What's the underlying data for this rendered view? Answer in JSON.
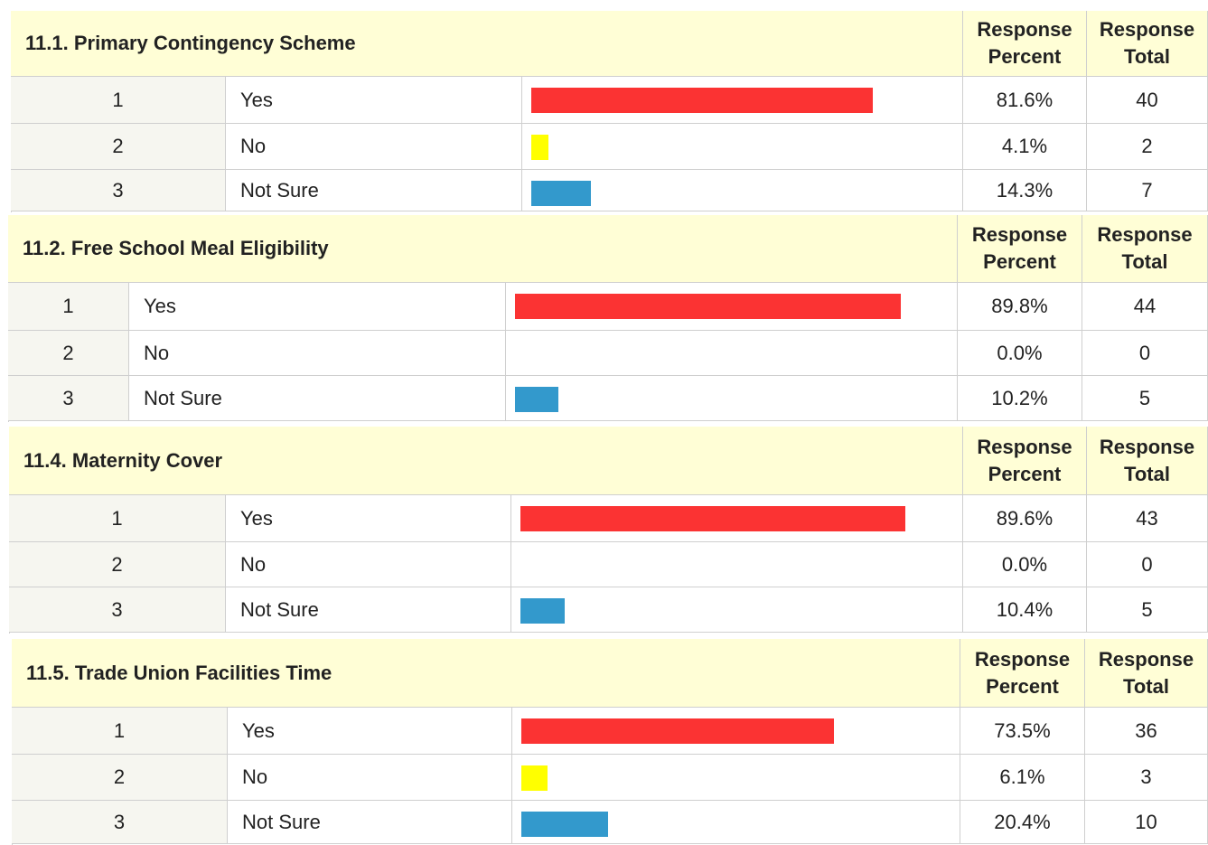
{
  "tables": [
    {
      "title": "11.1. Primary Contingency Scheme",
      "header_percent": "Response Percent",
      "header_total": "Response Total",
      "rows": [
        {
          "index": "1",
          "label": "Yes",
          "percent": 81.6,
          "percent_label": "81.6%",
          "total": 40
        },
        {
          "index": "2",
          "label": "No",
          "percent": 4.1,
          "percent_label": "4.1%",
          "total": 2
        },
        {
          "index": "3",
          "label": "Not Sure",
          "percent": 14.3,
          "percent_label": "14.3%",
          "total": 7
        }
      ]
    },
    {
      "title": "11.2. Free School Meal Eligibility",
      "header_percent": "Response Percent",
      "header_total": "Response Total",
      "rows": [
        {
          "index": "1",
          "label": "Yes",
          "percent": 89.8,
          "percent_label": "89.8%",
          "total": 44
        },
        {
          "index": "2",
          "label": "No",
          "percent": 0.0,
          "percent_label": "0.0%",
          "total": 0
        },
        {
          "index": "3",
          "label": "Not Sure",
          "percent": 10.2,
          "percent_label": "10.2%",
          "total": 5
        }
      ]
    },
    {
      "title": "11.4. Maternity Cover",
      "header_percent": "Response Percent",
      "header_total": "Response Total",
      "rows": [
        {
          "index": "1",
          "label": "Yes",
          "percent": 89.6,
          "percent_label": "89.6%",
          "total": 43
        },
        {
          "index": "2",
          "label": "No",
          "percent": 0.0,
          "percent_label": "0.0%",
          "total": 0
        },
        {
          "index": "3",
          "label": "Not Sure",
          "percent": 10.4,
          "percent_label": "10.4%",
          "total": 5
        }
      ]
    },
    {
      "title": "11.5. Trade Union Facilities Time",
      "header_percent": "Response Percent",
      "header_total": "Response Total",
      "rows": [
        {
          "index": "1",
          "label": "Yes",
          "percent": 73.5,
          "percent_label": "73.5%",
          "total": 36
        },
        {
          "index": "2",
          "label": "No",
          "percent": 6.1,
          "percent_label": "6.1%",
          "total": 3
        },
        {
          "index": "3",
          "label": "Not Sure",
          "percent": 20.4,
          "percent_label": "20.4%",
          "total": 10
        }
      ]
    }
  ],
  "bar_colors": [
    "#fb3333",
    "#ffff00",
    "#3399cc"
  ]
}
